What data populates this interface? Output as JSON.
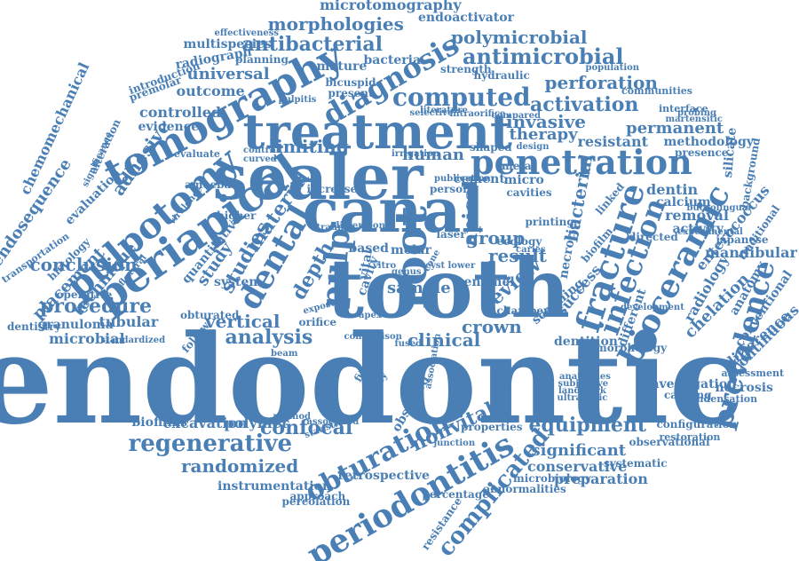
{
  "color": "#4a7fb5",
  "words": [
    "endodontic",
    "tooth",
    "canal",
    "sealer",
    "treatment",
    "root",
    "periapical",
    "tomography",
    "pulpotomy",
    "dental",
    "fracture",
    "bioceramic",
    "penetration",
    "infection",
    "periodontitis",
    "obturation",
    "regenerative",
    "complicated",
    "prevalence",
    "diagnosis",
    "computed",
    "antimicrobial",
    "antibacterial",
    "pulp",
    "morphologies",
    "microtomography",
    "polymicrobial",
    "perforation",
    "activation",
    "permanent",
    "invasive",
    "therapy",
    "human",
    "apical",
    "bacterial",
    "group",
    "crown",
    "clinical",
    "confocal",
    "randomized",
    "analysis",
    "vertical",
    "procedure",
    "conclusion",
    "technique",
    "adhesive",
    "placement",
    "microbial",
    "tubular",
    "granuloma",
    "dentistry",
    "operative",
    "endosequence",
    "chemomechanical",
    "evaluation",
    "histology",
    "transportation",
    "controlled",
    "evidence",
    "outcome",
    "universal",
    "introduction",
    "premolar",
    "radiograph",
    "multispecies",
    "planning",
    "effectiveness",
    "endoactivator",
    "mature",
    "bacteria",
    "bicuspid",
    "strength",
    "hydraulic",
    "population",
    "communities",
    "interface",
    "martensitic",
    "probing",
    "methodology",
    "presence",
    "resistant",
    "dentin",
    "calcium",
    "removal",
    "activity",
    "silicate",
    "background",
    "enterococcus",
    "mandibular",
    "anatomy",
    "radiology",
    "chelation",
    "difference",
    "continuous",
    "conventional",
    "assessment",
    "investigation",
    "capping",
    "necrosis",
    "condensation",
    "configuration",
    "restoration",
    "observational",
    "equipment",
    "significant",
    "systematic",
    "conservative",
    "preparation",
    "abnormalities",
    "microbiology",
    "resistance",
    "percentage",
    "percolation",
    "instrumentation",
    "retrospective",
    "approach",
    "associated",
    "statistical",
    "biofilms",
    "excavation",
    "polymer",
    "method",
    "nonvital",
    "properties",
    "junction",
    "morphology",
    "dentition",
    "different",
    "necrotic",
    "success",
    "scanning",
    "review",
    "result",
    "micro",
    "cavities",
    "sample",
    "cavity",
    "vital",
    "depth",
    "study",
    "studies",
    "material",
    "system",
    "higher",
    "orifice",
    "beam",
    "chamber",
    "enamel",
    "caries",
    "cement",
    "meta",
    "shaped",
    "design",
    "limiting",
    "curved",
    "control",
    "evaluate",
    "amoebae",
    "virulence",
    "obturated",
    "flexural",
    "quantitative",
    "exposure",
    "trauma",
    "based",
    "molar",
    "laser",
    "lower",
    "cone",
    "vitro",
    "cyst",
    "apex",
    "fused",
    "fitness",
    "quality",
    "observed",
    "association",
    "present",
    "pulpitis",
    "literature",
    "selective",
    "intraorifice",
    "compared",
    "publication",
    "irrigation",
    "increased",
    "person",
    "follow",
    "printing",
    "ecology",
    "biofilm",
    "linked",
    "directed",
    "japanese",
    "traditional",
    "buccolingual",
    "landmark",
    "ultrasonic",
    "anatomies",
    "subjective",
    "experimental",
    "development",
    "significance",
    "alteration",
    "standardized",
    "dimensional",
    "comparison",
    "genus",
    "series",
    "cross"
  ]
}
